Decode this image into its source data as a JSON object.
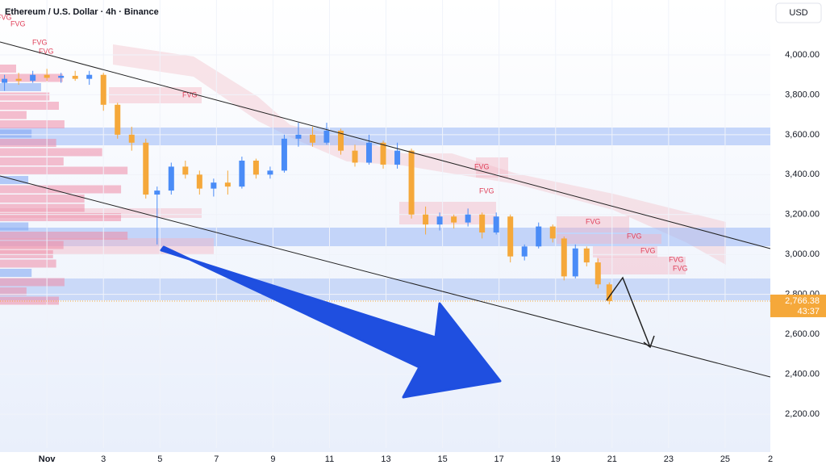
{
  "chart_data": {
    "type": "candlestick",
    "title": "Ethereum / U.S. Dollar · 4h · Binance",
    "currency": "USD",
    "x": [
      -0.5,
      0,
      0.5,
      1,
      1.5,
      2,
      2.5,
      3,
      3.5,
      4,
      4.5,
      4.9,
      5.4,
      5.9,
      6.4,
      6.9,
      7.4,
      7.9,
      8.4,
      8.9,
      9.4,
      9.9,
      10.4,
      10.9,
      11.4,
      11.9,
      12.4,
      12.9,
      13.4,
      13.9,
      14.4,
      14.9,
      15.4,
      15.9,
      16.4,
      16.9,
      17.4,
      17.9,
      18.4,
      18.9,
      19.3,
      19.7,
      20.1,
      20.5,
      20.9
    ],
    "open": [
      3860,
      3880,
      3870,
      3900,
      3885,
      3895,
      3880,
      3900,
      3750,
      3600,
      3560,
      3300,
      3320,
      3440,
      3400,
      3330,
      3360,
      3340,
      3470,
      3400,
      3420,
      3580,
      3600,
      3560,
      3620,
      3520,
      3460,
      3560,
      3450,
      3520,
      3200,
      3150,
      3190,
      3160,
      3200,
      3110,
      3190,
      2990,
      3040,
      3140,
      3080,
      2890,
      3030,
      2960,
      2850
    ],
    "high": [
      3900,
      3910,
      3920,
      3930,
      3910,
      3920,
      3920,
      3910,
      3760,
      3640,
      3580,
      3340,
      3460,
      3470,
      3420,
      3380,
      3420,
      3490,
      3480,
      3440,
      3600,
      3660,
      3640,
      3660,
      3630,
      3550,
      3600,
      3570,
      3560,
      3530,
      3240,
      3210,
      3200,
      3230,
      3210,
      3210,
      3200,
      3050,
      3160,
      3150,
      3090,
      3050,
      3040,
      2980,
      2860
    ],
    "low": [
      3820,
      3850,
      3860,
      3870,
      3860,
      3870,
      3850,
      3720,
      3580,
      3520,
      3280,
      3050,
      3300,
      3380,
      3300,
      3290,
      3300,
      3330,
      3380,
      3380,
      3410,
      3540,
      3540,
      3550,
      3500,
      3440,
      3450,
      3430,
      3430,
      3180,
      3100,
      3120,
      3130,
      3140,
      3080,
      3100,
      2960,
      2970,
      3030,
      3060,
      2870,
      2880,
      2940,
      2830,
      2750
    ],
    "close": [
      3880,
      3870,
      3900,
      3885,
      3895,
      3880,
      3900,
      3750,
      3600,
      3560,
      3300,
      3320,
      3440,
      3400,
      3330,
      3360,
      3340,
      3470,
      3400,
      3420,
      3580,
      3600,
      3560,
      3620,
      3520,
      3460,
      3560,
      3450,
      3520,
      3200,
      3150,
      3190,
      3160,
      3200,
      3110,
      3190,
      2990,
      3040,
      3140,
      3080,
      2890,
      3030,
      2960,
      2850,
      2766.38
    ],
    "up_color": "#4a8cf7",
    "down_color": "#f5a83a",
    "xlim": [
      -0.66,
      26.6
    ],
    "xticks": [
      {
        "value": 1,
        "label": "Nov"
      },
      3,
      5,
      7,
      9,
      11,
      13,
      15,
      17,
      19,
      21,
      23,
      25,
      {
        "value": 27,
        "label": "2"
      }
    ],
    "ylim": [
      2030,
      4275
    ],
    "yticks": [
      {
        "value": 2200,
        "label": "2,200.00"
      },
      {
        "value": 2400,
        "label": "2,400.00"
      },
      {
        "value": 2600,
        "label": "2,600.00"
      },
      {
        "value": 2800,
        "label": "2,800.00"
      },
      {
        "value": 3000,
        "label": "3,000.00"
      },
      {
        "value": 3200,
        "label": "3,200.00"
      },
      {
        "value": 3400,
        "label": "3,400.00"
      },
      {
        "value": 3600,
        "label": "3,600.00"
      },
      {
        "value": 3800,
        "label": "3,800.00"
      },
      {
        "value": 4000,
        "label": "4,000.00"
      }
    ],
    "last_price": {
      "value": 2766.38,
      "label": "2,766.38"
    },
    "countdown": "43:37",
    "annotations": [
      "FVG",
      "FVG",
      "FVG",
      "FVG",
      "FVG",
      "FVG",
      "FVG",
      "FVG",
      "FVG",
      "FVG",
      "FVG",
      "FVG"
    ]
  }
}
